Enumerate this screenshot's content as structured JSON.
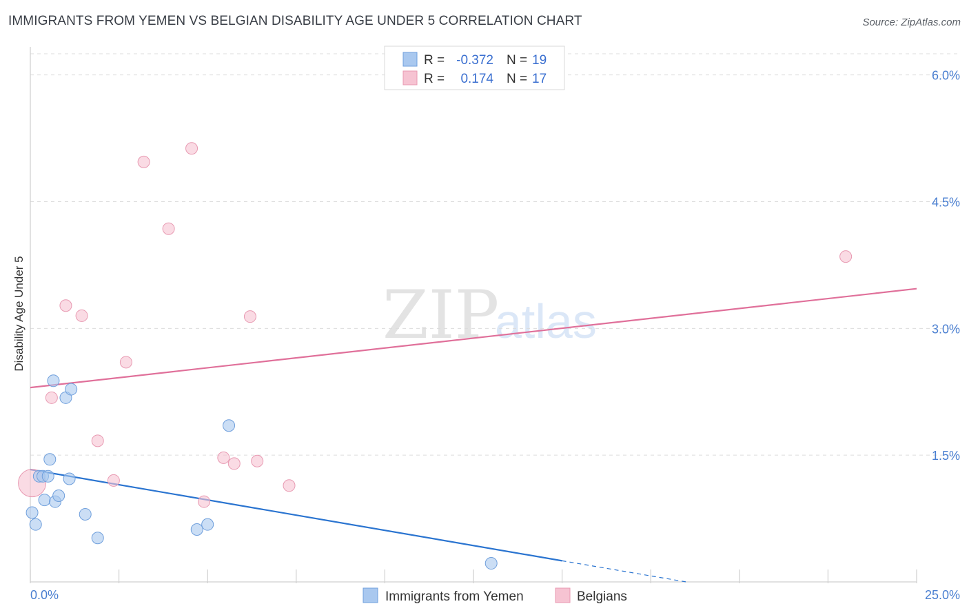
{
  "title": "IMMIGRANTS FROM YEMEN VS BELGIAN DISABILITY AGE UNDER 5 CORRELATION CHART",
  "source": "Source: ZipAtlas.com",
  "watermark": {
    "zip": "ZIP",
    "atlas": "atlas"
  },
  "colors": {
    "blue_fill": "#a9c8ef",
    "blue_stroke": "#6f9fdc",
    "blue_line": "#2a74d0",
    "pink_fill": "#f6c3d2",
    "pink_stroke": "#e89ab2",
    "pink_line": "#e0709a"
  },
  "legend": {
    "rows": [
      {
        "r_label": "R =",
        "r_value": "-0.372",
        "n_label": "N =",
        "n_value": "19"
      },
      {
        "r_label": "R =",
        "r_value": "0.174",
        "n_label": "N =",
        "n_value": "17"
      }
    ]
  },
  "chart_data": {
    "type": "scatter",
    "title": "IMMIGRANTS FROM YEMEN VS BELGIAN DISABILITY AGE UNDER 5 CORRELATION CHART",
    "xlabel": "",
    "ylabel": "Disability Age Under 5",
    "xlim": [
      0,
      25
    ],
    "ylim": [
      0,
      6.25
    ],
    "x_tick_labels": [
      "0.0%",
      "25.0%"
    ],
    "y_ticks": [
      1.5,
      3.0,
      4.5,
      6.0
    ],
    "y_tick_labels": [
      "1.5%",
      "3.0%",
      "4.5%",
      "6.0%"
    ],
    "series": [
      {
        "name": "Immigrants from Yemen",
        "color": "blue",
        "points": [
          {
            "x": 0.05,
            "y": 0.82
          },
          {
            "x": 0.15,
            "y": 0.68
          },
          {
            "x": 0.25,
            "y": 1.25
          },
          {
            "x": 0.35,
            "y": 1.25
          },
          {
            "x": 0.4,
            "y": 0.97
          },
          {
            "x": 0.5,
            "y": 1.25
          },
          {
            "x": 0.55,
            "y": 1.45
          },
          {
            "x": 0.65,
            "y": 2.38
          },
          {
            "x": 0.7,
            "y": 0.95
          },
          {
            "x": 0.8,
            "y": 1.02
          },
          {
            "x": 1.0,
            "y": 2.18
          },
          {
            "x": 1.1,
            "y": 1.22
          },
          {
            "x": 1.15,
            "y": 2.28
          },
          {
            "x": 1.55,
            "y": 0.8
          },
          {
            "x": 1.9,
            "y": 0.52
          },
          {
            "x": 4.7,
            "y": 0.62
          },
          {
            "x": 5.0,
            "y": 0.68
          },
          {
            "x": 5.6,
            "y": 1.85
          },
          {
            "x": 13.0,
            "y": 0.22
          }
        ],
        "trend": {
          "x0": 0,
          "y0": 1.33,
          "x1": 15,
          "y1": 0.25,
          "dashed_to_x": 18.5,
          "dashed_to_y": 0.0
        }
      },
      {
        "name": "Belgians",
        "color": "pink",
        "points": [
          {
            "x": 0.05,
            "y": 1.17
          },
          {
            "x": 0.6,
            "y": 2.18
          },
          {
            "x": 1.0,
            "y": 3.27
          },
          {
            "x": 1.45,
            "y": 3.15
          },
          {
            "x": 1.9,
            "y": 1.67
          },
          {
            "x": 2.35,
            "y": 1.2
          },
          {
            "x": 2.7,
            "y": 2.6
          },
          {
            "x": 3.2,
            "y": 4.97
          },
          {
            "x": 3.9,
            "y": 4.18
          },
          {
            "x": 4.55,
            "y": 5.13
          },
          {
            "x": 4.9,
            "y": 0.95
          },
          {
            "x": 5.45,
            "y": 1.47
          },
          {
            "x": 5.75,
            "y": 1.4
          },
          {
            "x": 6.2,
            "y": 3.14
          },
          {
            "x": 6.4,
            "y": 1.43
          },
          {
            "x": 7.3,
            "y": 1.14
          },
          {
            "x": 23.0,
            "y": 3.85
          }
        ],
        "trend": {
          "x0": 0,
          "y0": 2.3,
          "x1": 25,
          "y1": 3.47
        }
      }
    ]
  },
  "bottom_legend": {
    "items": [
      {
        "label": "Immigrants from Yemen"
      },
      {
        "label": "Belgians"
      }
    ]
  }
}
